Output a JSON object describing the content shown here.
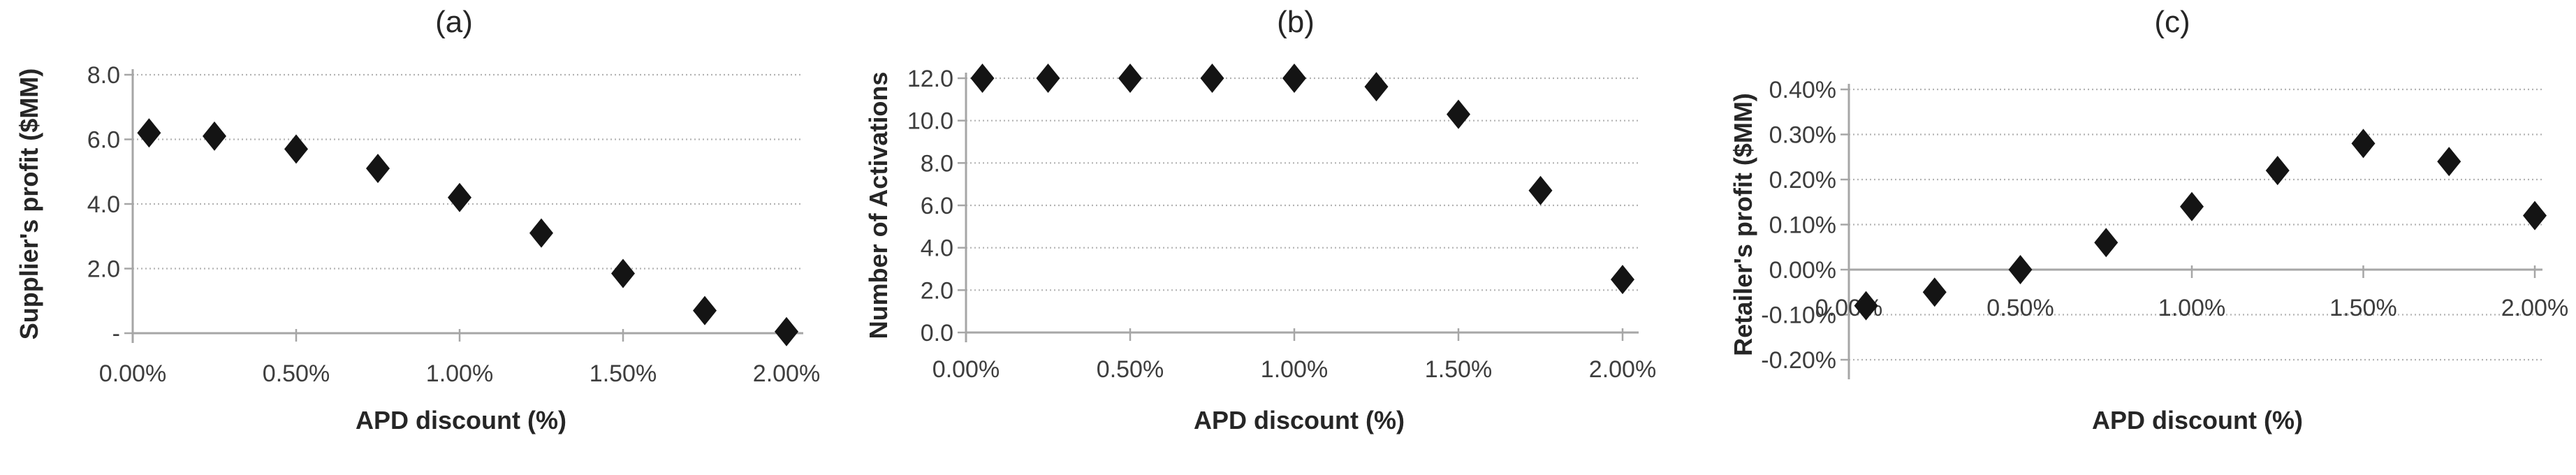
{
  "figure": {
    "background": "#ffffff",
    "description_colors": {
      "marker": "#141414",
      "axis_line": "#a6a6a6",
      "gridline": "#b3b3b3",
      "tick_text": "#3d3d3d",
      "title_text": "#262626"
    }
  },
  "chart_data": [
    {
      "id": "a",
      "type": "scatter",
      "title": "(a)",
      "xlabel": "APD discount (%)",
      "ylabel": "Supplier's profit ($MM)",
      "marker": "diamond",
      "legend": "none",
      "grid": "horizontal-dotted",
      "x": [
        0.05,
        0.25,
        0.5,
        0.75,
        1.0,
        1.25,
        1.5,
        1.75,
        2.0
      ],
      "y": [
        6.2,
        6.1,
        5.7,
        5.1,
        4.2,
        3.1,
        1.85,
        0.7,
        0.05
      ],
      "xlim": [
        0,
        2.0
      ],
      "ylim": [
        0,
        8.0
      ],
      "xticks": {
        "values": [
          0,
          0.5,
          1.0,
          1.5,
          2.0
        ],
        "labels": [
          "0.00%",
          "0.50%",
          "1.00%",
          "1.50%",
          "2.00%"
        ]
      },
      "yticks": {
        "values": [
          0,
          2,
          4,
          6,
          8
        ],
        "labels": [
          "-",
          "2.0",
          "4.0",
          "6.0",
          "8.0"
        ]
      }
    },
    {
      "id": "b",
      "type": "scatter",
      "title": "(b)",
      "xlabel": "APD discount (%)",
      "ylabel": "Number of Activations",
      "marker": "diamond",
      "legend": "none",
      "grid": "horizontal-dotted",
      "x": [
        0.05,
        0.25,
        0.5,
        0.75,
        1.0,
        1.25,
        1.5,
        1.75,
        2.0
      ],
      "y": [
        12.0,
        12.0,
        12.0,
        12.0,
        12.0,
        11.6,
        10.3,
        6.7,
        2.5
      ],
      "xlim": [
        0,
        2.0
      ],
      "ylim": [
        0,
        12.0
      ],
      "xticks": {
        "values": [
          0,
          0.5,
          1.0,
          1.5,
          2.0
        ],
        "labels": [
          "0.00%",
          "0.50%",
          "1.00%",
          "1.50%",
          "2.00%"
        ]
      },
      "yticks": {
        "values": [
          0,
          2,
          4,
          6,
          8,
          10,
          12
        ],
        "labels": [
          "0.0",
          "2.0",
          "4.0",
          "6.0",
          "8.0",
          "10.0",
          "12.0"
        ]
      }
    },
    {
      "id": "c",
      "type": "scatter",
      "title": "(c)",
      "xlabel": "APD discount (%)",
      "ylabel": "Retailer's profit ($MM)",
      "marker": "diamond",
      "legend": "none",
      "grid": "horizontal-dotted",
      "x": [
        0.05,
        0.25,
        0.5,
        0.75,
        1.0,
        1.25,
        1.5,
        1.75,
        2.0
      ],
      "y": [
        -0.08,
        -0.05,
        0.0,
        0.06,
        0.14,
        0.22,
        0.28,
        0.24,
        0.12
      ],
      "xlim": [
        0,
        2.0
      ],
      "ylim": [
        -0.2,
        0.4
      ],
      "xticks": {
        "values": [
          0,
          0.5,
          1.0,
          1.5,
          2.0
        ],
        "labels": [
          "0.00%",
          "0.50%",
          "1.00%",
          "1.50%",
          "2.00%"
        ]
      },
      "yticks": {
        "values": [
          -0.2,
          -0.1,
          0,
          0.1,
          0.2,
          0.3,
          0.4
        ],
        "labels": [
          "-0.20%",
          "-0.10%",
          "0.00%",
          "0.10%",
          "0.20%",
          "0.30%",
          "0.40%"
        ]
      }
    }
  ]
}
